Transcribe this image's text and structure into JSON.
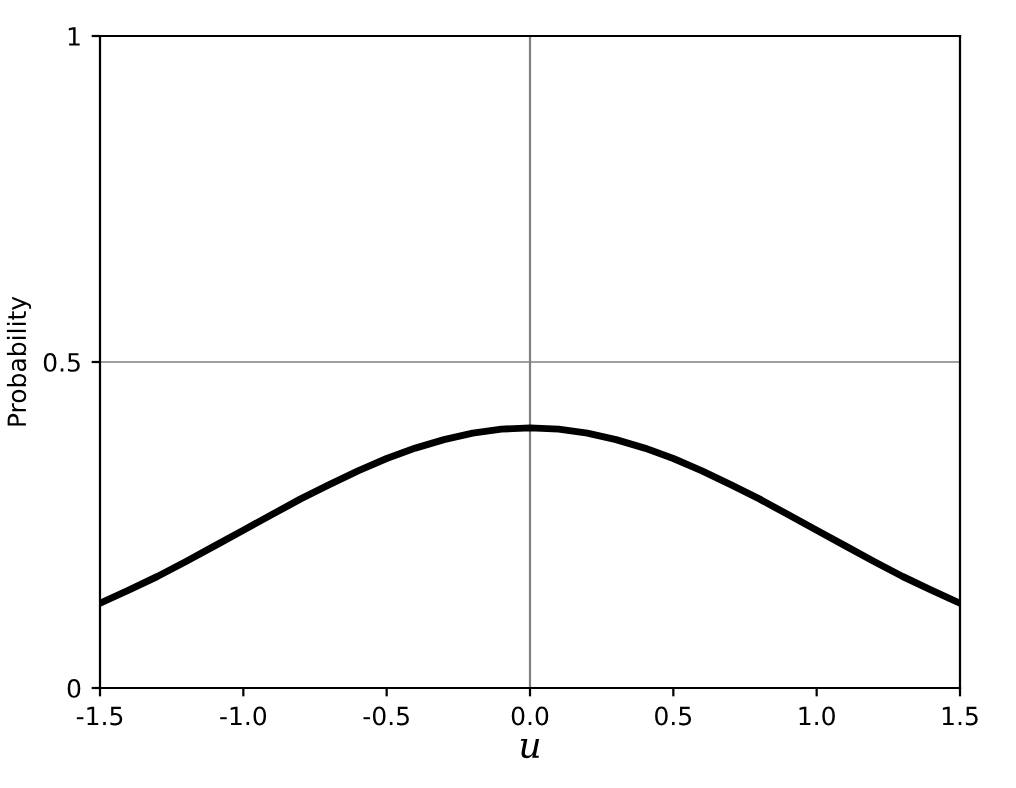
{
  "chart_data": {
    "type": "line",
    "xlabel": "u",
    "ylabel": "Probability",
    "x": [
      -1.5,
      -1.4,
      -1.3,
      -1.2,
      -1.1,
      -1.0,
      -0.9,
      -0.8,
      -0.7,
      -0.6,
      -0.5,
      -0.4,
      -0.3,
      -0.2,
      -0.1,
      0.0,
      0.1,
      0.2,
      0.3,
      0.4,
      0.5,
      0.6,
      0.7,
      0.8,
      0.9,
      1.0,
      1.1,
      1.2,
      1.3,
      1.4,
      1.5
    ],
    "series": [
      {
        "color": "#000000",
        "values": [
          0.13,
          0.15,
          0.171,
          0.194,
          0.218,
          0.242,
          0.266,
          0.29,
          0.312,
          0.333,
          0.352,
          0.368,
          0.381,
          0.391,
          0.397,
          0.399,
          0.397,
          0.391,
          0.381,
          0.368,
          0.352,
          0.333,
          0.312,
          0.29,
          0.266,
          0.242,
          0.218,
          0.194,
          0.171,
          0.15,
          0.13
        ]
      }
    ],
    "xlim": [
      -1.5,
      1.5
    ],
    "xticks": [
      -1.5,
      {
        "value": -1.0,
        "label": "-1.0"
      },
      -0.5,
      {
        "value": 0,
        "label": "0.0"
      },
      0.5,
      {
        "value": 1.0,
        "label": "1.0"
      },
      1.5
    ],
    "ylim": [
      0,
      1
    ],
    "yticks": [
      0,
      0.5,
      1
    ],
    "ref_lines": [
      {
        "axis": "y",
        "value": 0.5,
        "color": "#a0a0a0"
      },
      {
        "axis": "x",
        "value": 0,
        "color": "#808080"
      }
    ],
    "grid": false,
    "legend": false,
    "marker": "none",
    "line_style": "solid"
  }
}
